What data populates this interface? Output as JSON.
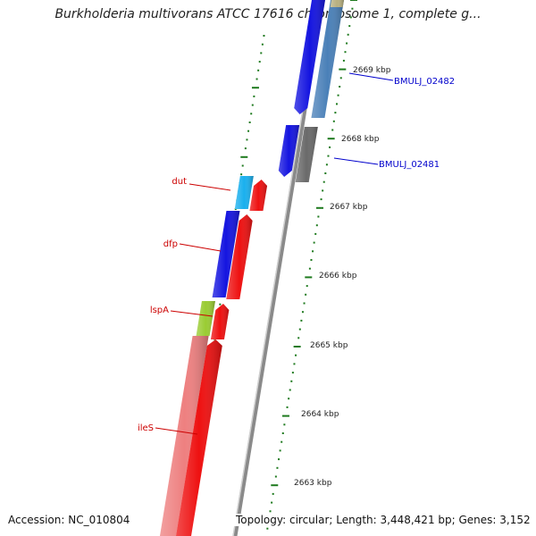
{
  "title": "Burkholderia multivorans ATCC 17616 chromosome 1, complete g...",
  "accession": "Accession: NC_010804",
  "stats": "Topology: circular; Length: 3,448,421 bp; Genes: 3,152",
  "colors": {
    "background": "#ffffff",
    "backbone": "#8a8a8a",
    "ticks": "#1e7a1e",
    "gene_label_left": "#cc0000",
    "gene_label_right": "#0000cc",
    "blue_cds": "#1414e0",
    "red_cds": "#ee1111",
    "salmon_cds": "#ee8080",
    "cyan_cds": "#1ab0ee",
    "steel_cds": "#4a80b8",
    "gray_cds": "#6a6a6a",
    "lime_cds": "#9acc33",
    "olive_cds": "#b8b080"
  },
  "kbp_labels": [
    "2669 kbp",
    "2668 kbp",
    "2667 kbp",
    "2666 kbp",
    "2665 kbp",
    "2664 kbp",
    "2663 kbp"
  ],
  "gene_labels": {
    "left": [
      "dut",
      "dfp",
      "lspA",
      "ileS"
    ],
    "right": [
      "BMULJ_02482",
      "BMULJ_02481"
    ]
  }
}
